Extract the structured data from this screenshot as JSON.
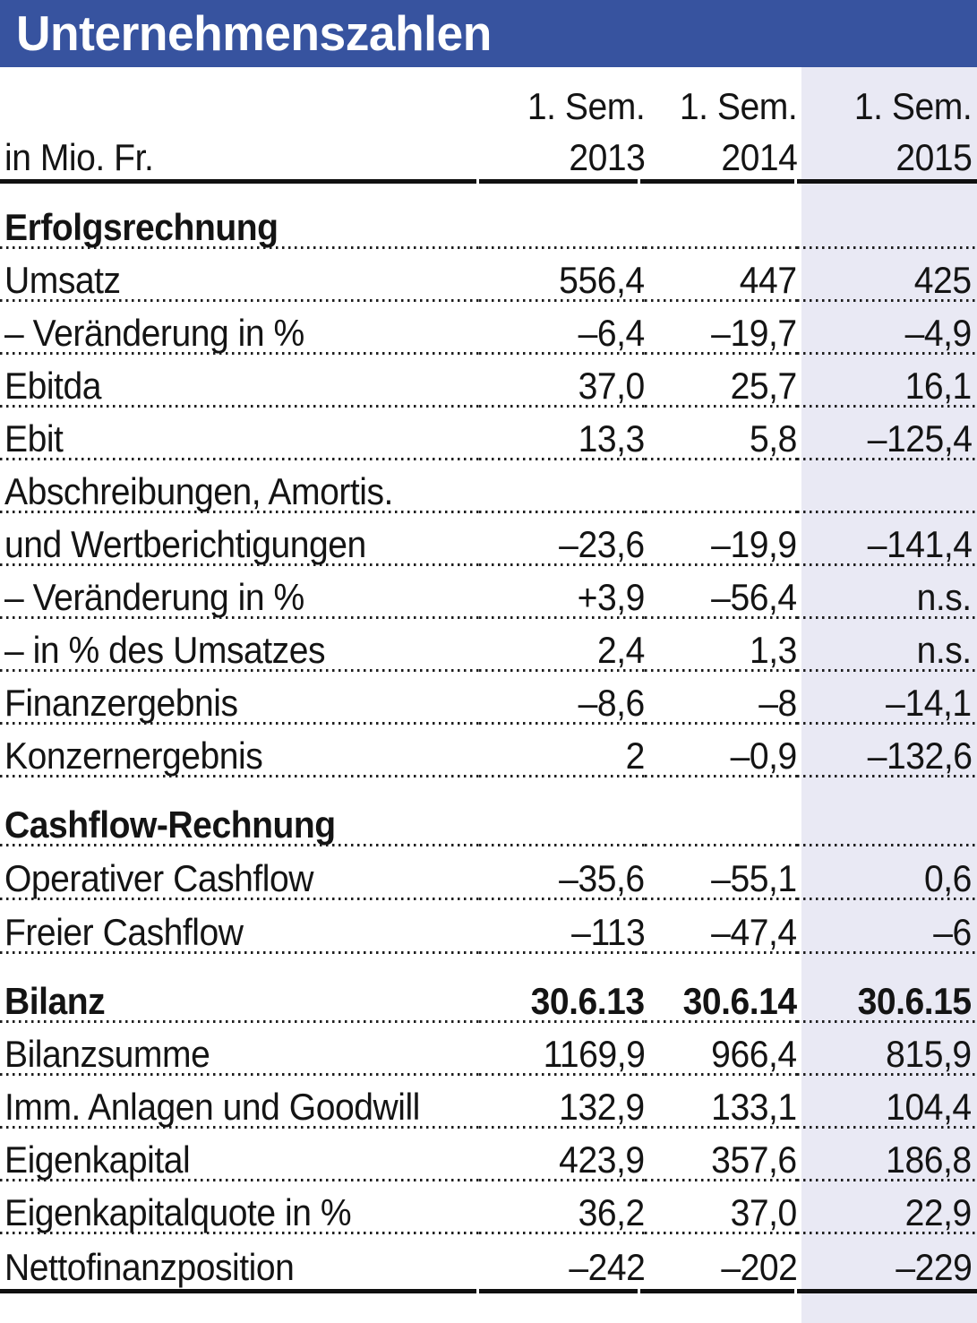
{
  "title": "Unternehmenszahlen",
  "chart_data": {
    "type": "table",
    "title": "Unternehmenszahlen",
    "unit_label": "in Mio. Fr.",
    "period_label": "1. Sem.",
    "years": [
      "2013",
      "2014",
      "2015"
    ],
    "legend_position": "none",
    "grid": "dotted-row-separators",
    "colors": {
      "title_bar_bg": "#37539f",
      "title_text": "#ffffff",
      "highlight_column_bg": "#e9e9f4",
      "text": "#141414",
      "rule": "#101010"
    },
    "rows": [
      {
        "label": "Erfolgsrechnung",
        "style": "section",
        "v": [
          "",
          "",
          ""
        ]
      },
      {
        "label": "Umsatz",
        "style": "data",
        "v": [
          "556,4",
          "447",
          "425"
        ]
      },
      {
        "label": "– Veränderung in %",
        "style": "data",
        "v": [
          "–6,4",
          "–19,7",
          "–4,9"
        ]
      },
      {
        "label": "Ebitda",
        "style": "data",
        "v": [
          "37,0",
          "25,7",
          "16,1"
        ]
      },
      {
        "label": "Ebit",
        "style": "data",
        "v": [
          "13,3",
          "5,8",
          "–125,4"
        ]
      },
      {
        "label": "Abschreibungen, Amortis.",
        "style": "data",
        "v": [
          "",
          "",
          ""
        ]
      },
      {
        "label": "und Wertberichtigungen",
        "style": "data",
        "v": [
          "–23,6",
          "–19,9",
          "–141,4"
        ]
      },
      {
        "label": "– Veränderung in %",
        "style": "data",
        "v": [
          "+3,9",
          "–56,4",
          "n.s."
        ]
      },
      {
        "label": "– in % des Umsatzes",
        "style": "data",
        "v": [
          "2,4",
          "1,3",
          "n.s."
        ]
      },
      {
        "label": "Finanzergebnis",
        "style": "data",
        "v": [
          "–8,6",
          "–8",
          "–14,1"
        ]
      },
      {
        "label": "Konzernergebnis",
        "style": "data",
        "v": [
          "2",
          "–0,9",
          "–132,6"
        ]
      },
      {
        "label": "Cashflow-Rechnung",
        "style": "section",
        "v": [
          "",
          "",
          ""
        ]
      },
      {
        "label": "Operativer Cashflow",
        "style": "data",
        "v": [
          "–35,6",
          "–55,1",
          "0,6"
        ]
      },
      {
        "label": "Freier Cashflow",
        "style": "data",
        "v": [
          "–113",
          "–47,4",
          "–6"
        ]
      },
      {
        "label": "Bilanz",
        "style": "section-with-values",
        "v": [
          "30.6.13",
          "30.6.14",
          "30.6.15"
        ]
      },
      {
        "label": "Bilanzsumme",
        "style": "data",
        "v": [
          "1169,9",
          "966,4",
          "815,9"
        ]
      },
      {
        "label": "Imm. Anlagen und Goodwill",
        "style": "data",
        "v": [
          "132,9",
          "133,1",
          "104,4"
        ]
      },
      {
        "label": "Eigenkapital",
        "style": "data",
        "v": [
          "423,9",
          "357,6",
          "186,8"
        ]
      },
      {
        "label": "Eigenkapitalquote in %",
        "style": "data",
        "v": [
          "36,2",
          "37,0",
          "22,9"
        ]
      },
      {
        "label": "Nettofinanzposition",
        "style": "data",
        "v": [
          "–242",
          "–202",
          "–229"
        ]
      }
    ]
  }
}
